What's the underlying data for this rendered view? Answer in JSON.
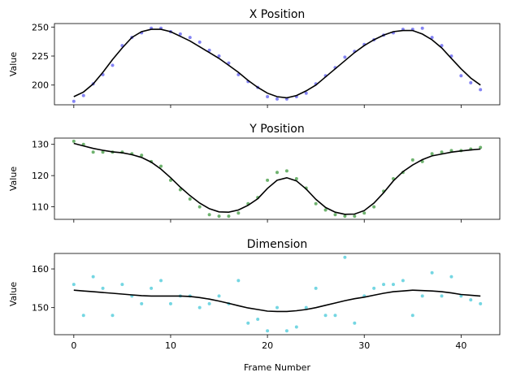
{
  "xlabel": "Frame Number",
  "chart_data": [
    {
      "type": "scatter",
      "title": "X Position",
      "ylabel": "Value",
      "xlim": [
        -2,
        44
      ],
      "ylim": [
        183,
        253
      ],
      "xticks": [
        0,
        10,
        20,
        30,
        40
      ],
      "yticks": [
        200,
        225,
        250
      ],
      "point_color": "#5b5bf0",
      "line_color": "#000000",
      "x": [
        0,
        1,
        2,
        3,
        4,
        5,
        6,
        7,
        8,
        9,
        10,
        11,
        12,
        13,
        14,
        15,
        16,
        17,
        18,
        19,
        20,
        21,
        22,
        23,
        24,
        25,
        26,
        27,
        28,
        29,
        30,
        31,
        32,
        33,
        34,
        35,
        36,
        37,
        38,
        39,
        40,
        41,
        42
      ],
      "points": [
        186,
        191,
        201,
        209,
        217,
        234,
        241,
        245,
        249,
        249,
        246,
        244,
        241,
        237,
        230,
        225,
        219,
        209,
        203,
        198,
        190,
        188,
        188,
        190,
        193,
        201,
        208,
        215,
        224,
        229,
        235,
        239,
        243,
        245,
        248,
        248,
        249,
        241,
        234,
        225,
        208,
        202,
        196
      ],
      "smooth": [
        190,
        194,
        201,
        211,
        222,
        232,
        241,
        246,
        248,
        248,
        246,
        242,
        238,
        233,
        228,
        223,
        217,
        211,
        204,
        198,
        193,
        190,
        189,
        191,
        195,
        200,
        207,
        214,
        221,
        228,
        234,
        239,
        243,
        246,
        247,
        247,
        244,
        239,
        232,
        223,
        214,
        206,
        200
      ]
    },
    {
      "type": "scatter",
      "title": "Y Position",
      "ylabel": "Value",
      "xlim": [
        -2,
        44
      ],
      "ylim": [
        106,
        132
      ],
      "xticks": [
        0,
        10,
        20,
        30,
        40
      ],
      "yticks": [
        110,
        120,
        130
      ],
      "point_color": "#3f9a3f",
      "line_color": "#000000",
      "x": [
        0,
        1,
        2,
        3,
        4,
        5,
        6,
        7,
        8,
        9,
        10,
        11,
        12,
        13,
        14,
        15,
        16,
        17,
        18,
        19,
        20,
        21,
        22,
        23,
        24,
        25,
        26,
        27,
        28,
        29,
        30,
        31,
        32,
        33,
        34,
        35,
        36,
        37,
        38,
        39,
        40,
        41,
        42
      ],
      "points": [
        131,
        130,
        127.5,
        127.5,
        127.5,
        127.5,
        127,
        126.5,
        124.5,
        123,
        118.5,
        115.5,
        112.5,
        110,
        107.5,
        107,
        107,
        108,
        111,
        113,
        118.5,
        121,
        121.5,
        119,
        116,
        111,
        109,
        107.5,
        107,
        107,
        108,
        110,
        115,
        119,
        121,
        125,
        124.5,
        127,
        127.5,
        128,
        128,
        128.5,
        129
      ],
      "smooth": [
        130.3,
        129.5,
        128.7,
        128.1,
        127.6,
        127.3,
        126.7,
        125.8,
        124.3,
        122.1,
        119.3,
        116.3,
        113.6,
        111.2,
        109.4,
        108.4,
        108.3,
        109,
        110.5,
        112.6,
        115.9,
        118.5,
        119.3,
        118.3,
        115.7,
        112.4,
        109.8,
        108.3,
        107.6,
        107.7,
        108.8,
        111.2,
        114.5,
        118.3,
        121.3,
        123.4,
        125.1,
        126.3,
        126.9,
        127.5,
        127.9,
        128.2,
        128.5
      ]
    },
    {
      "type": "scatter",
      "title": "Dimension",
      "ylabel": "Value",
      "xlim": [
        -2,
        44
      ],
      "ylim": [
        143,
        164
      ],
      "xticks": [
        0,
        10,
        20,
        30,
        40
      ],
      "yticks": [
        150,
        160
      ],
      "point_color": "#45c8d8",
      "line_color": "#000000",
      "x": [
        0,
        1,
        2,
        3,
        4,
        5,
        6,
        7,
        8,
        9,
        10,
        11,
        12,
        13,
        14,
        15,
        16,
        17,
        18,
        19,
        20,
        21,
        22,
        23,
        24,
        25,
        26,
        27,
        28,
        29,
        30,
        31,
        32,
        33,
        34,
        35,
        36,
        37,
        38,
        39,
        40,
        41,
        42
      ],
      "points": [
        156,
        148,
        158,
        155,
        148,
        156,
        153,
        151,
        155,
        157,
        151,
        153,
        153,
        150,
        151,
        153,
        151,
        157,
        146,
        147,
        144,
        150,
        144,
        145,
        150,
        155,
        148,
        148,
        163,
        146,
        153,
        155,
        156,
        156,
        157,
        148,
        153,
        159,
        153,
        158,
        153,
        152,
        151
      ],
      "smooth": [
        154.5,
        154.3,
        154.1,
        153.9,
        153.7,
        153.5,
        153.3,
        153.1,
        153,
        153,
        153,
        153,
        152.9,
        152.6,
        152.2,
        151.7,
        151.1,
        150.5,
        149.9,
        149.5,
        149.1,
        149,
        149,
        149.2,
        149.5,
        150,
        150.6,
        151.2,
        151.8,
        152.3,
        152.7,
        153.2,
        153.7,
        154.1,
        154.3,
        154.5,
        154.4,
        154.3,
        154.1,
        153.8,
        153.4,
        153.2,
        153
      ]
    }
  ]
}
